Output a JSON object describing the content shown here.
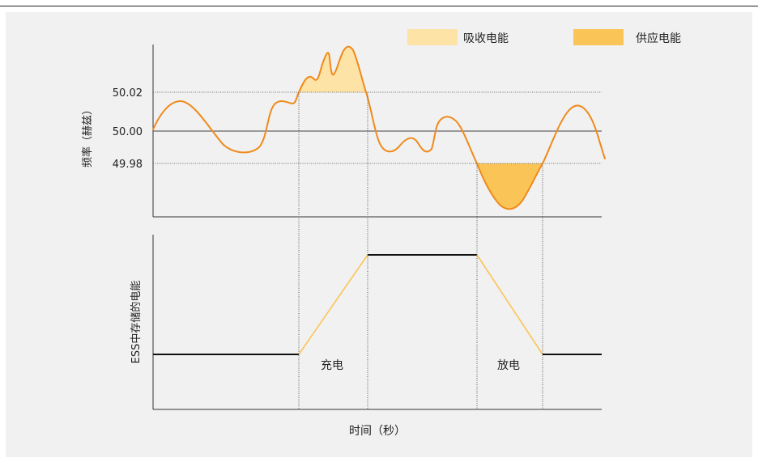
{
  "legend": {
    "absorb_label": "吸收电能",
    "supply_label": "供应电能",
    "absorb_color": "#fde3a6",
    "supply_color": "#fbc456"
  },
  "top_chart": {
    "ylabel": "频率（赫兹）",
    "ticks": [
      "50.02",
      "50.00",
      "49.98"
    ],
    "tick_values": [
      50.02,
      50.0,
      49.98
    ],
    "line_color": "#f08a1c"
  },
  "bottom_chart": {
    "ylabel": "ESS中存储的电能",
    "charge_label": "充电",
    "discharge_label": "放电",
    "ramp_color": "#fbc456"
  },
  "xlabel": "时间（秒）"
}
